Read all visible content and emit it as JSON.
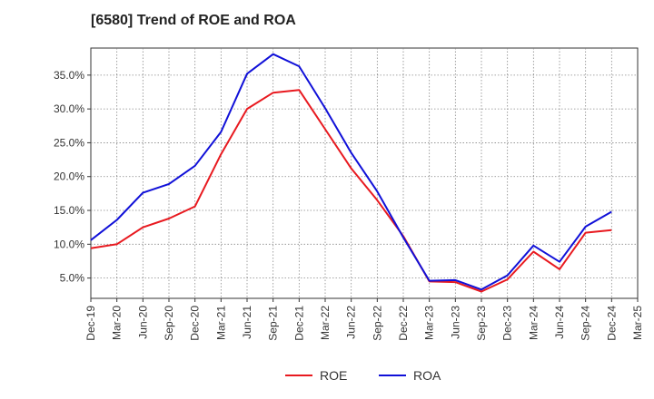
{
  "title": "[6580]  Trend of ROE and ROA",
  "chart_data": {
    "type": "line",
    "title": "[6580]  Trend of ROE and ROA",
    "xlabel": "",
    "ylabel": "",
    "x": [
      "Dec-19",
      "Mar-20",
      "Jun-20",
      "Sep-20",
      "Dec-20",
      "Mar-21",
      "Jun-21",
      "Sep-21",
      "Dec-21",
      "Mar-22",
      "Jun-22",
      "Sep-22",
      "Dec-22",
      "Mar-23",
      "Jun-23",
      "Sep-23",
      "Dec-23",
      "Mar-24",
      "Jun-24",
      "Sep-24",
      "Dec-24",
      "Mar-25"
    ],
    "ylim": [
      2.0,
      39.0
    ],
    "yticks": [
      5.0,
      10.0,
      15.0,
      20.0,
      25.0,
      30.0,
      35.0
    ],
    "ytick_labels": [
      "5.0%",
      "10.0%",
      "15.0%",
      "20.0%",
      "25.0%",
      "30.0%",
      "35.0%"
    ],
    "grid": true,
    "legend_position": "bottom",
    "series": [
      {
        "name": "ROE",
        "color": "#e8191f",
        "values": [
          9.4,
          10.0,
          12.5,
          13.8,
          15.6,
          23.3,
          30.0,
          32.4,
          32.8,
          27.0,
          21.2,
          16.5,
          11.2,
          4.5,
          4.4,
          3.0,
          4.8,
          8.9,
          6.3,
          11.7,
          12.1,
          null
        ]
      },
      {
        "name": "ROA",
        "color": "#1010d8",
        "values": [
          10.6,
          13.6,
          17.6,
          18.9,
          21.6,
          26.6,
          35.2,
          38.1,
          36.3,
          30.1,
          23.5,
          17.8,
          11.0,
          4.6,
          4.7,
          3.3,
          5.4,
          9.8,
          7.4,
          12.6,
          14.8,
          null
        ]
      }
    ]
  }
}
